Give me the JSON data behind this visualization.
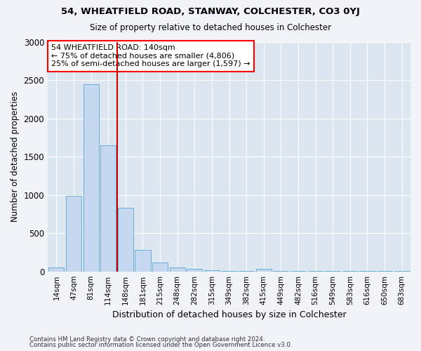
{
  "title": "54, WHEATFIELD ROAD, STANWAY, COLCHESTER, CO3 0YJ",
  "subtitle": "Size of property relative to detached houses in Colchester",
  "xlabel": "Distribution of detached houses by size in Colchester",
  "ylabel": "Number of detached properties",
  "categories": [
    "14sqm",
    "47sqm",
    "81sqm",
    "114sqm",
    "148sqm",
    "181sqm",
    "215sqm",
    "248sqm",
    "282sqm",
    "315sqm",
    "349sqm",
    "382sqm",
    "415sqm",
    "449sqm",
    "482sqm",
    "516sqm",
    "549sqm",
    "583sqm",
    "616sqm",
    "650sqm",
    "683sqm"
  ],
  "values": [
    50,
    985,
    2450,
    1650,
    830,
    280,
    115,
    50,
    30,
    20,
    5,
    5,
    30,
    5,
    5,
    2,
    2,
    2,
    2,
    2,
    2
  ],
  "bar_color": "#c5d8f0",
  "bar_edge_color": "#6baed6",
  "background_color": "#dce6f0",
  "grid_color": "#ffffff",
  "annotation_line1": "54 WHEATFIELD ROAD: 140sqm",
  "annotation_line2": "← 75% of detached houses are smaller (4,806)",
  "annotation_line3": "25% of semi-detached houses are larger (1,597) →",
  "vline_color": "#cc0000",
  "vline_x_index": 3.5,
  "ylim": [
    0,
    3000
  ],
  "yticks": [
    0,
    500,
    1000,
    1500,
    2000,
    2500,
    3000
  ],
  "footnote1": "Contains HM Land Registry data © Crown copyright and database right 2024.",
  "footnote2": "Contains public sector information licensed under the Open Government Licence v3.0."
}
